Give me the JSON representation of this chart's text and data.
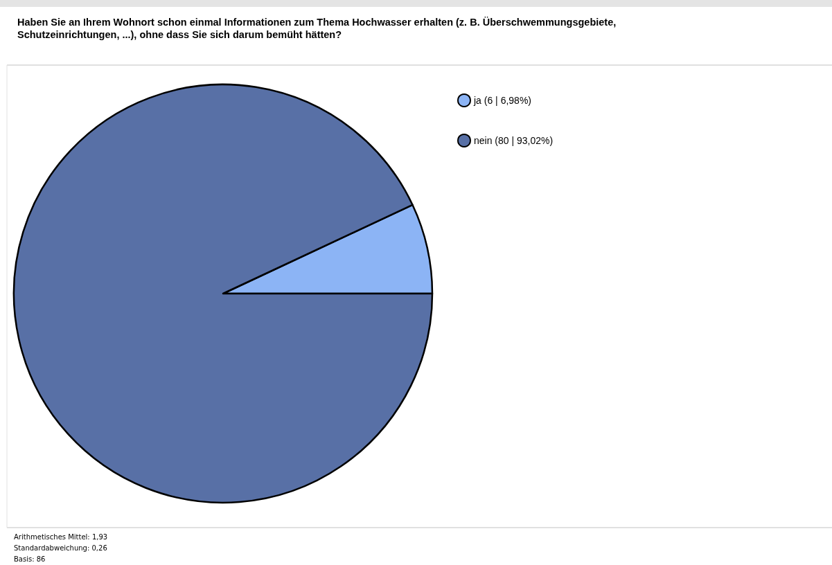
{
  "chart_data": {
    "type": "pie",
    "title": "Haben Sie an Ihrem Wohnort schon einmal Informationen zum Thema Hochwasser erhalten (z. B. Überschwemmungsgebiete,\nSchutzeinrichtungen, ...), ohne dass Sie sich darum bemüht hätten?",
    "categories": [
      "ja (6 | 6,98%)",
      "nein (80 | 93,02%)"
    ],
    "values": [
      6,
      80
    ],
    "colors": [
      "#8cb4f5",
      "#5870a6"
    ],
    "legend": "top right",
    "annotations": [
      "Arithmetisches Mittel: 1,93",
      "Standardabweichung: 0,26",
      "Basis: 86"
    ]
  }
}
